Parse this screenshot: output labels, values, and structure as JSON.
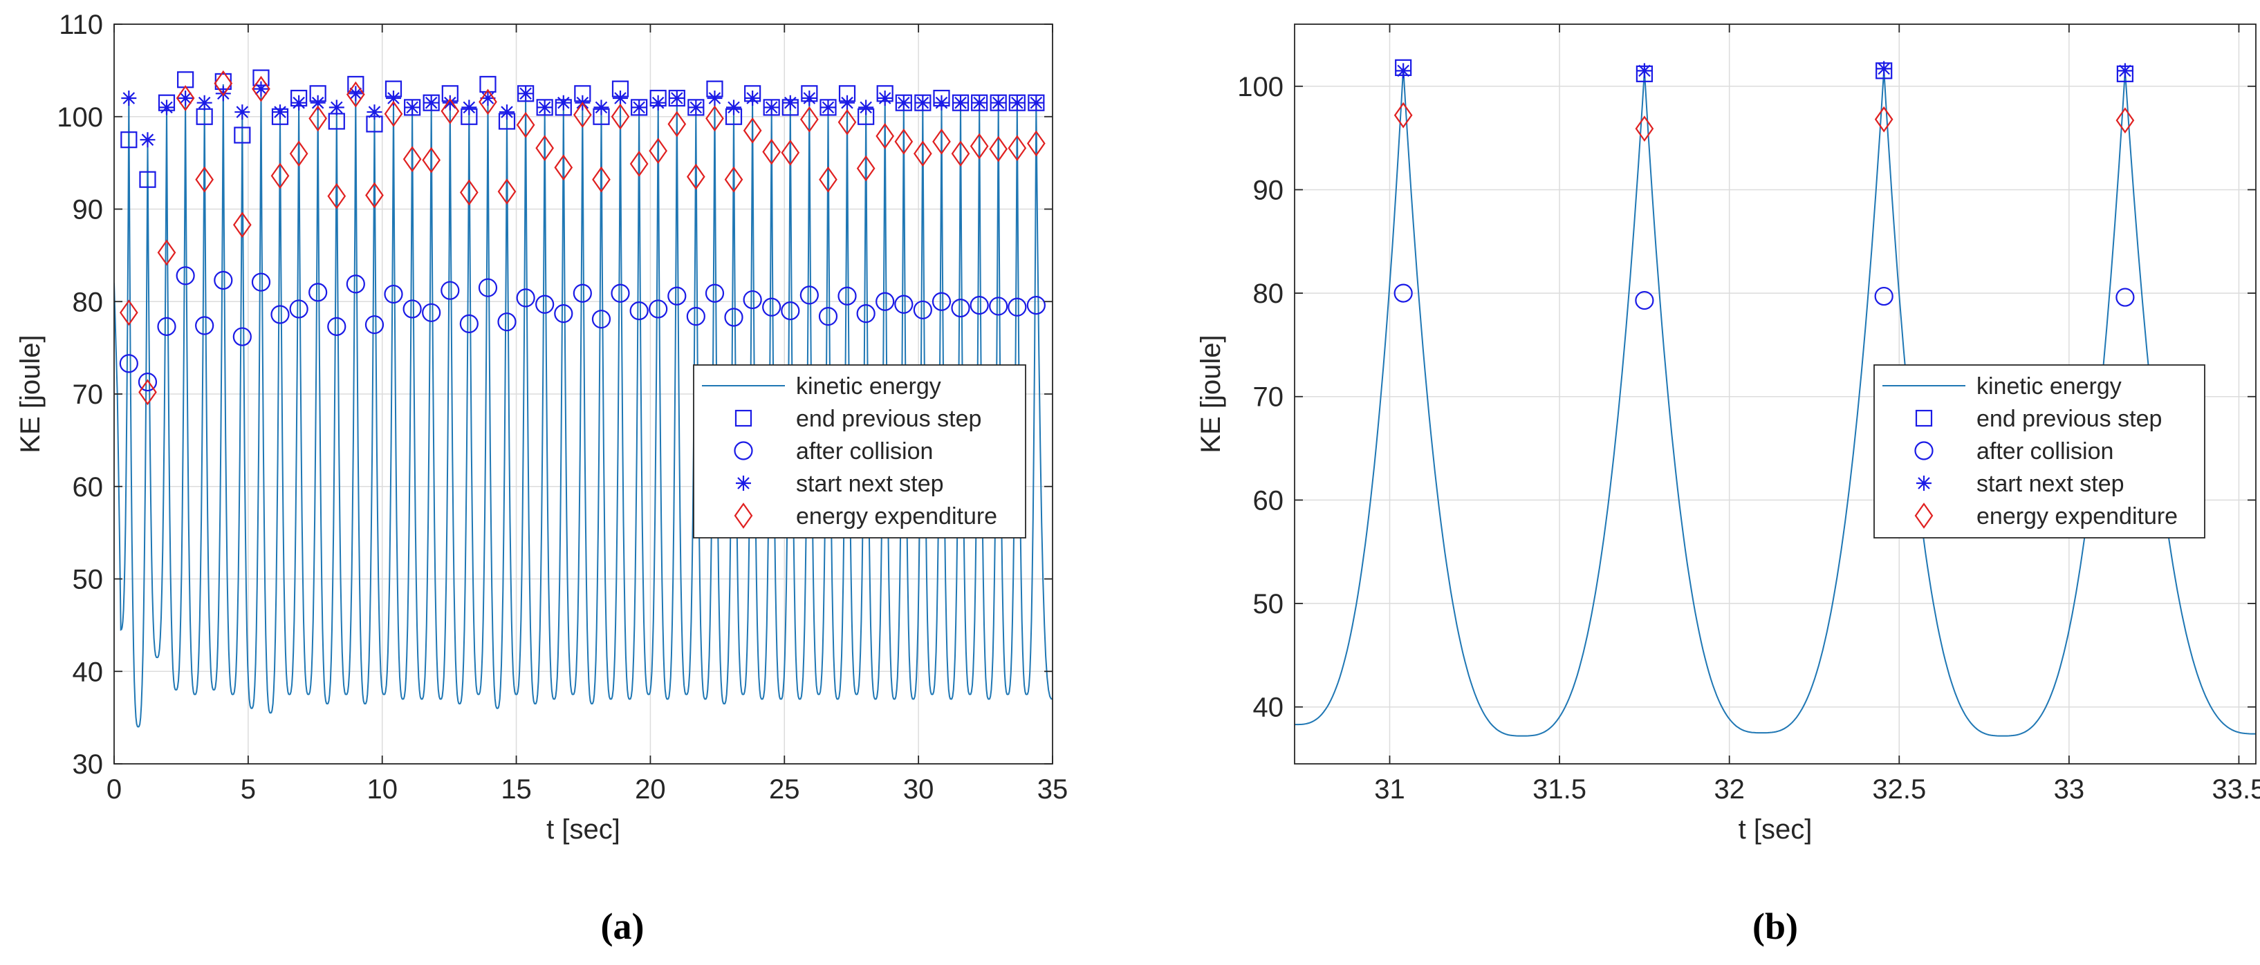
{
  "colors": {
    "line": "#1f77b4",
    "blue_marker": "#1a1ae6",
    "red_marker": "#e02020",
    "grid": "#dcdcdc",
    "axis": "#262626"
  },
  "chart_data": [
    {
      "type": "line",
      "panel_label": "(a)",
      "xlabel": "t [sec]",
      "ylabel": "KE [joule]",
      "xlim": [
        0,
        35
      ],
      "ylim": [
        30,
        110
      ],
      "xticks": [
        0,
        5,
        10,
        15,
        20,
        25,
        30,
        35
      ],
      "yticks": [
        30,
        40,
        50,
        60,
        70,
        80,
        90,
        100,
        110
      ],
      "grid": true,
      "legend_position": "center-right",
      "legend": [
        "kinetic energy",
        "end previous step",
        "after collision",
        "start next step",
        "energy expenditure"
      ],
      "series": [
        {
          "name": "kinetic energy",
          "style": "line",
          "peak_times": [
            0.55,
            1.25,
            1.96,
            2.66,
            3.37,
            4.07,
            4.78,
            5.48,
            6.19,
            6.89,
            7.6,
            8.3,
            9.01,
            9.71,
            10.42,
            11.12,
            11.83,
            12.53,
            13.24,
            13.94,
            14.65,
            15.35,
            16.06,
            16.76,
            17.47,
            18.17,
            18.88,
            19.58,
            20.29,
            20.99,
            21.7,
            22.4,
            23.11,
            23.81,
            24.52,
            25.22,
            25.93,
            26.63,
            27.34,
            28.04,
            28.75,
            29.45,
            30.16,
            30.86,
            31.57,
            32.27,
            32.98,
            33.68,
            34.39
          ],
          "peak_values": [
            102,
            97.5,
            101,
            102,
            101.5,
            103.5,
            100.5,
            103,
            100.5,
            101.5,
            101.5,
            101,
            102.5,
            100.5,
            102,
            101,
            101.5,
            101.5,
            101,
            102,
            100.5,
            102.5,
            101,
            101.5,
            101.5,
            101,
            102,
            101,
            101.5,
            102,
            101,
            102,
            101,
            102,
            101,
            101.5,
            102,
            101,
            101.5,
            101,
            102,
            101.5,
            101.5,
            101.5,
            101.5,
            101.5,
            101.5,
            101.5,
            101.5
          ],
          "trough_values": [
            44.5,
            34,
            41.5,
            38,
            37.5,
            38,
            37.5,
            36,
            35.5,
            37.5,
            37.5,
            36.5,
            37.5,
            36.5,
            37.5,
            37,
            37,
            37,
            36.5,
            37.5,
            36,
            37.5,
            36.5,
            37,
            37.5,
            36.5,
            37,
            37,
            37.5,
            37,
            37.5,
            37,
            36.5,
            37.5,
            37,
            37,
            37,
            37.5,
            37,
            37.5,
            37,
            37,
            37,
            37.5,
            37,
            37.5,
            37,
            37.5,
            37.5
          ]
        },
        {
          "name": "end previous step",
          "style": "square",
          "x": [
            0.55,
            1.25,
            1.96,
            2.66,
            3.37,
            4.07,
            4.78,
            5.48,
            6.19,
            6.89,
            7.6,
            8.3,
            9.01,
            9.71,
            10.42,
            11.12,
            11.83,
            12.53,
            13.24,
            13.94,
            14.65,
            15.35,
            16.06,
            16.76,
            17.47,
            18.17,
            18.88,
            19.58,
            20.29,
            20.99,
            21.7,
            22.4,
            23.11,
            23.81,
            24.52,
            25.22,
            25.93,
            26.63,
            27.34,
            28.04,
            28.75,
            29.45,
            30.16,
            30.86,
            31.57,
            32.27,
            32.98,
            33.68,
            34.39
          ],
          "y": [
            97.5,
            93.2,
            101.5,
            104,
            100,
            103.8,
            98,
            104.2,
            100,
            102,
            102.5,
            99.5,
            103.5,
            99.2,
            103,
            101,
            101.5,
            102.5,
            100,
            103.5,
            99.5,
            102.5,
            101,
            101,
            102.5,
            100,
            103,
            101,
            102,
            102,
            101,
            103,
            100,
            102.5,
            101,
            101,
            102.5,
            101,
            102.5,
            100,
            102.5,
            101.5,
            101.5,
            102,
            101.5,
            101.5,
            101.5,
            101.5,
            101.5
          ]
        },
        {
          "name": "after collision",
          "style": "circle",
          "x": [
            0.55,
            1.25,
            1.96,
            2.66,
            3.37,
            4.07,
            4.78,
            5.48,
            6.19,
            6.89,
            7.6,
            8.3,
            9.01,
            9.71,
            10.42,
            11.12,
            11.83,
            12.53,
            13.24,
            13.94,
            14.65,
            15.35,
            16.06,
            16.76,
            17.47,
            18.17,
            18.88,
            19.58,
            20.29,
            20.99,
            21.7,
            22.4,
            23.11,
            23.81,
            24.52,
            25.22,
            25.93,
            26.63,
            27.34,
            28.04,
            28.75,
            29.45,
            30.16,
            30.86,
            31.57,
            32.27,
            32.98,
            33.68,
            34.39
          ],
          "y": [
            73.3,
            71.3,
            77.3,
            82.8,
            77.4,
            82.3,
            76.2,
            82.1,
            78.6,
            79.2,
            81,
            77.3,
            81.9,
            77.5,
            80.8,
            79.2,
            78.8,
            81.2,
            77.6,
            81.5,
            77.8,
            80.4,
            79.7,
            78.7,
            80.9,
            78.1,
            80.9,
            79,
            79.2,
            80.6,
            78.4,
            80.9,
            78.3,
            80.2,
            79.4,
            79,
            80.7,
            78.4,
            80.6,
            78.7,
            80,
            79.7,
            79.1,
            80,
            79.3,
            79.6,
            79.5,
            79.4,
            79.6
          ]
        },
        {
          "name": "start next step",
          "style": "asterisk",
          "x": [
            0.55,
            1.25,
            1.96,
            2.66,
            3.37,
            4.07,
            4.78,
            5.48,
            6.19,
            6.89,
            7.6,
            8.3,
            9.01,
            9.71,
            10.42,
            11.12,
            11.83,
            12.53,
            13.24,
            13.94,
            14.65,
            15.35,
            16.06,
            16.76,
            17.47,
            18.17,
            18.88,
            19.58,
            20.29,
            20.99,
            21.7,
            22.4,
            23.11,
            23.81,
            24.52,
            25.22,
            25.93,
            26.63,
            27.34,
            28.04,
            28.75,
            29.45,
            30.16,
            30.86,
            31.57,
            32.27,
            32.98,
            33.68,
            34.39
          ],
          "y": [
            102,
            97.5,
            101,
            102,
            101.5,
            102.5,
            100.5,
            103,
            100.5,
            101.5,
            101.5,
            101,
            102.5,
            100.5,
            102,
            101,
            101.5,
            101.5,
            101,
            102,
            100.5,
            102.5,
            101,
            101.5,
            101.5,
            101,
            102,
            101,
            101.5,
            102,
            101,
            102,
            101,
            102,
            101,
            101.5,
            102,
            101,
            101.5,
            101,
            102,
            101.5,
            101.5,
            101.5,
            101.5,
            101.5,
            101.5,
            101.5,
            101.5
          ]
        },
        {
          "name": "energy expenditure",
          "style": "diamond",
          "x": [
            0.55,
            1.25,
            1.96,
            2.66,
            3.37,
            4.07,
            4.78,
            5.48,
            6.19,
            6.89,
            7.6,
            8.3,
            9.01,
            9.71,
            10.42,
            11.12,
            11.83,
            12.53,
            13.24,
            13.94,
            14.65,
            15.35,
            16.06,
            16.76,
            17.47,
            18.17,
            18.88,
            19.58,
            20.29,
            20.99,
            21.7,
            22.4,
            23.11,
            23.81,
            24.52,
            25.22,
            25.93,
            26.63,
            27.34,
            28.04,
            28.75,
            29.45,
            30.16,
            30.86,
            31.57,
            32.27,
            32.98,
            33.68,
            34.39
          ],
          "y": [
            78.8,
            70.2,
            85.3,
            102,
            93.2,
            103.6,
            88.3,
            103,
            93.6,
            96,
            99.8,
            91.4,
            102.4,
            91.5,
            100.3,
            95.4,
            95.3,
            100.6,
            91.8,
            101.6,
            91.9,
            99.1,
            96.6,
            94.5,
            100.2,
            93.2,
            100,
            94.9,
            96.3,
            99.2,
            93.5,
            99.8,
            93.2,
            98.5,
            96.2,
            96.1,
            99.7,
            93.2,
            99.4,
            94.4,
            97.9,
            97.3,
            96,
            97.3,
            96,
            96.8,
            96.5,
            96.6,
            97.1
          ]
        }
      ]
    },
    {
      "type": "line",
      "panel_label": "(b)",
      "xlabel": "t [sec]",
      "ylabel": "KE [joule]",
      "xlim": [
        30.72,
        33.55
      ],
      "ylim": [
        34.5,
        106
      ],
      "xticks": [
        31,
        31.5,
        32,
        32.5,
        33,
        33.5
      ],
      "yticks": [
        40,
        50,
        60,
        70,
        80,
        90,
        100
      ],
      "grid": true,
      "legend_position": "center-right",
      "legend": [
        "kinetic energy",
        "end previous step",
        "after collision",
        "start next step",
        "energy expenditure"
      ],
      "series": [
        {
          "name": "kinetic energy",
          "style": "line",
          "peak_times": [
            31.04,
            31.75,
            32.455,
            33.165
          ],
          "peak_values": [
            101.8,
            101.5,
            101.6,
            101.5
          ],
          "trough_times": [
            31.39,
            32.095,
            32.805
          ],
          "trough_values": [
            37.2,
            37.5,
            37.2
          ]
        },
        {
          "name": "end previous step",
          "style": "square",
          "x": [
            31.04,
            31.75,
            32.455,
            33.165
          ],
          "y": [
            101.8,
            101.2,
            101.5,
            101.2
          ]
        },
        {
          "name": "after collision",
          "style": "circle",
          "x": [
            31.04,
            31.75,
            32.455,
            33.165
          ],
          "y": [
            80,
            79.3,
            79.7,
            79.6
          ]
        },
        {
          "name": "start next step",
          "style": "asterisk",
          "x": [
            31.04,
            31.75,
            32.455,
            33.165
          ],
          "y": [
            101.5,
            101.5,
            101.7,
            101.5
          ]
        },
        {
          "name": "energy expenditure",
          "style": "diamond",
          "x": [
            31.04,
            31.75,
            32.455,
            33.165
          ],
          "y": [
            97.2,
            95.9,
            96.8,
            96.7
          ]
        }
      ]
    }
  ]
}
